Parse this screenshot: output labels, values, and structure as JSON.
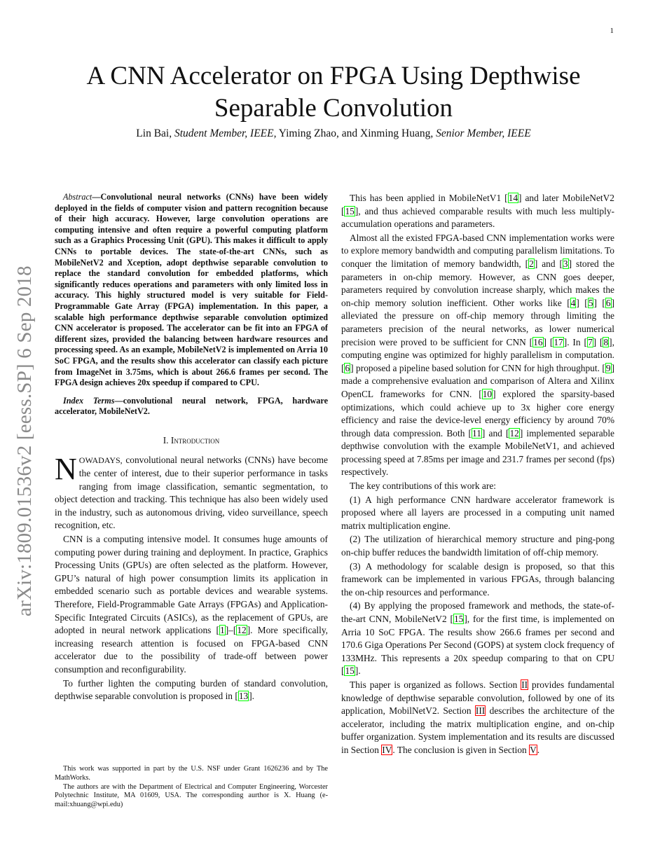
{
  "page_number": "1",
  "title": "A CNN Accelerator on FPGA Using Depthwise Separable Convolution",
  "authors": {
    "a1": "Lin Bai, ",
    "a1_role": "Student Member, IEEE,",
    "a2": " Yiming Zhao, and Xinming Huang, ",
    "a2_role": "Senior Member, IEEE"
  },
  "arxiv_stamp": "arXiv:1809.01536v2  [eess.SP]  6 Sep 2018",
  "abstract": {
    "label": "Abstract",
    "text": "—Convolutional neural networks (CNNs) have been widely deployed in the fields of computer vision and pattern recognition because of their high accuracy. However, large convolution operations are computing intensive and often require a powerful computing platform such as a Graphics Processing Unit (GPU). This makes it difficult to apply CNNs to portable devices. The state-of-the-art CNNs, such as MobileNetV2 and Xception, adopt depthwise separable convolution to replace the standard convolution for embedded platforms, which significantly reduces operations and parameters with only limited loss in accuracy. This highly structured model is very suitable for Field-Programmable Gate Array (FPGA) implementation. In this paper, a scalable high performance depthwise separable convolution optimized CNN accelerator is proposed. The accelerator can be fit into an FPGA of different sizes, provided the balancing between hardware resources and processing speed. As an example, MobileNetV2 is implemented on Arria 10 SoC FPGA, and the results show this accelerator can classify each picture from ImageNet in 3.75ms, which is about 266.6 frames per second. The FPGA design achieves 20x speedup if compared to CPU."
  },
  "index_terms": {
    "label": "Index Terms",
    "text": "—convolutional neural network, FPGA, hardware accelerator, MobileNetV2."
  },
  "section_heading": "I. Introduction",
  "dropcap": "N",
  "first_word": "owadays,",
  "colors": {
    "citation_box": "#00ff00",
    "section_box": "#ff0000"
  },
  "left_paragraphs": [
    [
      " convolutional neural networks (CNNs) have become the center of interest, due to their superior performance in tasks ranging from image classification, semantic segmentation, to object detection and tracking. This technique has also been widely used in the industry, such as autonomous driving, video surveillance, speech recognition, etc."
    ],
    [
      "CNN is a computing intensive model. It consumes huge amounts of computing power during training and deployment. In practice, Graphics Processing Units (GPUs) are often selected as the platform. However, GPU’s natural of high power consumption limits its application in embedded scenario such as portable devices and wearable systems. Therefore, Field-Programmable Gate Arrays (FPGAs) and Application-Specific Integrated Circuits (ASICs), as the replacement of GPUs, are adopted in neural network applications [",
      {
        "r": "1"
      },
      "]–[",
      {
        "r": "12"
      },
      "]. More specifically, increasing research attention is focused on FPGA-based CNN accelerator due to the possibility of trade-off between power consumption and reconfigurability."
    ],
    [
      "To further lighten the computing burden of standard convolution, depthwise separable convolution is proposed in [",
      {
        "r": "13"
      },
      "]."
    ]
  ],
  "right_paragraphs": [
    [
      "This has been applied in MobileNetV1 [",
      {
        "r": "14"
      },
      "] and later MobileNetV2 [",
      {
        "r": "15"
      },
      "], and thus achieved comparable results with much less multiply-accumulation operations and parameters."
    ],
    [
      "Almost all the existed FPGA-based CNN implementation works were to explore memory bandwidth and computing parallelism limitations. To conquer the limitation of memory bandwidth, [",
      {
        "r": "2"
      },
      "] and [",
      {
        "r": "3"
      },
      "] stored the parameters in on-chip memory. However, as CNN goes deeper, parameters required by convolution increase sharply, which makes the on-chip memory solution inefficient. Other works like [",
      {
        "r": "4"
      },
      "] [",
      {
        "r": "5"
      },
      "] [",
      {
        "r": "6"
      },
      "] alleviated the pressure on off-chip memory through limiting the parameters precision of the neural networks, as lower numerical precision were proved to be sufficient for CNN [",
      {
        "r": "16"
      },
      "] [",
      {
        "r": "17"
      },
      "]. In [",
      {
        "r": "7"
      },
      "] [",
      {
        "r": "8"
      },
      "], computing engine was optimized for highly parallelism in computation. [",
      {
        "r": "6"
      },
      "] proposed a pipeline based solution for CNN for high throughput. [",
      {
        "r": "9"
      },
      "] made a comprehensive evaluation and comparison of Altera and Xilinx OpenCL frameworks for CNN. [",
      {
        "r": "10"
      },
      "] explored the sparsity-based optimizations, which could achieve up to 3x higher core energy efficiency and raise the device-level energy efficiency by around 70% through data compression. Both [",
      {
        "r": "11"
      },
      "] and [",
      {
        "r": "12"
      },
      "] implemented separable depthwise convolution with the example MobileNetV1, and achieved processing speed at 7.85ms per image and 231.7 frames per second (fps) respectively."
    ],
    [
      "The key contributions of this work are:"
    ],
    [
      "(1) A high performance CNN hardware accelerator framework is proposed where all layers are processed in a computing unit named matrix multiplication engine."
    ],
    [
      "(2) The utilization of hierarchical memory structure and ping-pong on-chip buffer reduces the bandwidth limitation of off-chip memory."
    ],
    [
      "(3) A methodology for scalable design is proposed, so that this framework can be implemented in various FPGAs, through balancing the on-chip resources and performance."
    ],
    [
      "(4) By applying the proposed framework and methods, the state-of-the-art CNN, MobileNetV2 [",
      {
        "r": "15"
      },
      "], for the first time, is implemented on Arria 10 SoC FPGA. The results show 266.6 frames per second and 170.6 Giga Operations Per Second (GOPS) at system clock frequency of 133MHz. This represents a 20x speedup comparing to that on CPU [",
      {
        "r": "15"
      },
      "]."
    ],
    [
      "This paper is organized as follows. Section ",
      {
        "s": "II"
      },
      " provides fundamental knowledge of depthwise separable convolution, followed by one of its application, MobilNetV2. Section ",
      {
        "s": "III"
      },
      " describes the architecture of the accelerator, including the matrix multiplication engine, and on-chip buffer organization. System implementation and its results are discussed in Section ",
      {
        "s": "IV"
      },
      ". The conclusion is given in Section ",
      {
        "s": "V"
      },
      "."
    ]
  ],
  "footnotes": [
    "This work was supported in part by the U.S. NSF under Grant 1626236 and by The MathWorks.",
    "The authors are with the Department of Electrical and Computer Engineering, Worcester Polytechnic Institute, MA 01609, USA. The corresponding aurthor is X. Huang (e-mail:xhuang@wpi.edu)"
  ]
}
